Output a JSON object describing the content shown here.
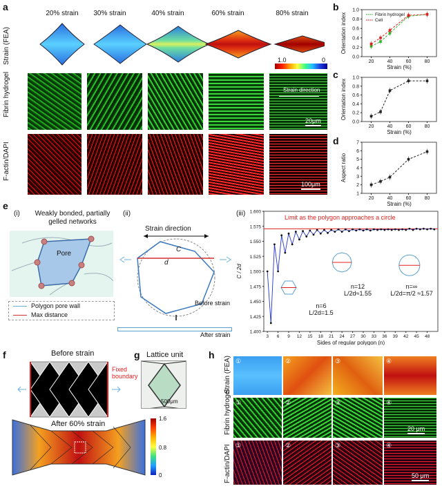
{
  "panels": {
    "a": "a",
    "b": "b",
    "c": "c",
    "d": "d",
    "e": "e",
    "f": "f",
    "g": "g",
    "h": "h"
  },
  "a": {
    "strains": [
      "20% strain",
      "30% strain",
      "40% strain",
      "60% strain",
      "80% strain"
    ],
    "rows": [
      "Strain (FEA)",
      "Fibrin hydrogel",
      "F-actin/DAPI"
    ],
    "colorbar_max": "1.0",
    "colorbar_min": "0",
    "strain_direction": "Strain direction",
    "scale1": "20μm",
    "scale2": "100μm"
  },
  "bc_axes": {
    "b_ylabel": "Orientation index",
    "b_xlabel": "Strain (%)",
    "c_ylabel": "Orientation index",
    "c_xlabel": "Strain (%)",
    "d_ylabel": "Aspect ratio",
    "d_xlabel": "Strain (%)",
    "b_legend": [
      "Fibrin hydrogel",
      "Cell"
    ],
    "x_ticks": [
      "20",
      "40",
      "60",
      "80"
    ],
    "b_yticks": [
      "0.0",
      "0.2",
      "0.4",
      "0.6",
      "0.8",
      "1.0"
    ],
    "c_yticks": [
      "0.0",
      "0.2",
      "0.4",
      "0.6",
      "0.8",
      "1.0"
    ],
    "d_yticks": [
      "1",
      "2",
      "3",
      "4",
      "5",
      "6",
      "7"
    ]
  },
  "chart_data": [
    {
      "type": "line",
      "panel": "b",
      "x": [
        20,
        30,
        40,
        60,
        80
      ],
      "series": [
        {
          "name": "Fibrin hydrogel",
          "values": [
            0.22,
            0.32,
            0.5,
            0.86,
            0.9
          ],
          "color": "#2db52d"
        },
        {
          "name": "Cell",
          "values": [
            0.27,
            0.4,
            0.56,
            0.88,
            0.9
          ],
          "color": "#e02020"
        }
      ],
      "xlabel": "Strain (%)",
      "ylabel": "Orientation index",
      "ylim": [
        0,
        1
      ],
      "xlim": [
        10,
        90
      ]
    },
    {
      "type": "line",
      "panel": "c",
      "x": [
        20,
        30,
        40,
        60,
        80
      ],
      "series": [
        {
          "values": [
            0.12,
            0.22,
            0.7,
            0.92,
            0.92
          ],
          "color": "#222"
        }
      ],
      "xlabel": "Strain (%)",
      "ylabel": "Orientation index",
      "ylim": [
        0,
        1
      ],
      "xlim": [
        10,
        90
      ]
    },
    {
      "type": "line",
      "panel": "d",
      "x": [
        20,
        30,
        40,
        60,
        80
      ],
      "series": [
        {
          "values": [
            2.0,
            2.4,
            2.9,
            5.0,
            5.9
          ],
          "color": "#222"
        }
      ],
      "xlabel": "Strain (%)",
      "ylabel": "Aspect ratio",
      "ylim": [
        1,
        7
      ],
      "xlim": [
        10,
        90
      ]
    },
    {
      "type": "line",
      "panel": "e-iii",
      "x": [
        3,
        4,
        5,
        6,
        7,
        8,
        9,
        10,
        11,
        12,
        13,
        14,
        15,
        16,
        17,
        18,
        19,
        20,
        21,
        22,
        23,
        24,
        25,
        26,
        27,
        28,
        29,
        30,
        31,
        32,
        33,
        34,
        35,
        36,
        37,
        38,
        39,
        40,
        41,
        42,
        43,
        44,
        45,
        46,
        47,
        48,
        49,
        50
      ],
      "series": [
        {
          "values": [
            1.5,
            1.414,
            1.545,
            1.5,
            1.56,
            1.531,
            1.563,
            1.545,
            1.566,
            1.553,
            1.567,
            1.558,
            1.568,
            1.561,
            1.569,
            1.563,
            1.569,
            1.564,
            1.569,
            1.566,
            1.57,
            1.566,
            1.57,
            1.567,
            1.57,
            1.568,
            1.57,
            1.568,
            1.57,
            1.568,
            1.57,
            1.569,
            1.57,
            1.569,
            1.57,
            1.569,
            1.57,
            1.569,
            1.57,
            1.569,
            1.571,
            1.569,
            1.571,
            1.57,
            1.571,
            1.57,
            1.571,
            1.57
          ],
          "color": "#2233cc"
        }
      ],
      "limit": 1.5708,
      "xlabel": "Sides of regular polygon (n)",
      "ylabel": "C / 2d",
      "ylim": [
        1.4,
        1.6
      ]
    }
  ],
  "e": {
    "i_label": "(i)",
    "ii_label": "(ii)",
    "iii_label": "(iii)",
    "weak": "Weakly bonded, partially gelled networks",
    "pore": "Pore",
    "legend_wall": "Polygon pore wall",
    "legend_max": "Max distance",
    "strain_dir": "Strain direction",
    "C": "C",
    "d": "d",
    "before": "Before strain",
    "after": "After strain",
    "limit_text": "Limit as the polygon approaches a circle",
    "n6": "n=6",
    "n6v": "L/2d=1.5",
    "n12": "n=12",
    "n12v": "L/2d≈1.55",
    "ninf": "n=∞",
    "ninfv": "L/2d=π/2 ≈1.57",
    "yticks": [
      "1.400",
      "1.425",
      "1.450",
      "1.475",
      "1.500",
      "1.525",
      "1.550",
      "1.575",
      "1.600"
    ],
    "xticks": [
      "3",
      "6",
      "9",
      "12",
      "15",
      "18",
      "21",
      "24",
      "27",
      "30",
      "33",
      "36",
      "39",
      "42",
      "45",
      "48"
    ],
    "xlabel": "Sides of regular polygon (n)",
    "ylabel": "C / 2d"
  },
  "f": {
    "before": "Before strain",
    "fixed": "Fixed boundary",
    "after": "After 60% strain",
    "cb": [
      "1.6",
      "0.8",
      "0"
    ]
  },
  "g": {
    "title": "Lattice unit",
    "scale": "500μm"
  },
  "h": {
    "rows": [
      "Strain (FEA)",
      "Fibrin hydrogel",
      "F-actin/DAPI"
    ],
    "nums": [
      "①",
      "②",
      "③",
      "④"
    ],
    "scale1": "20 μm",
    "scale2": "50 μm"
  }
}
